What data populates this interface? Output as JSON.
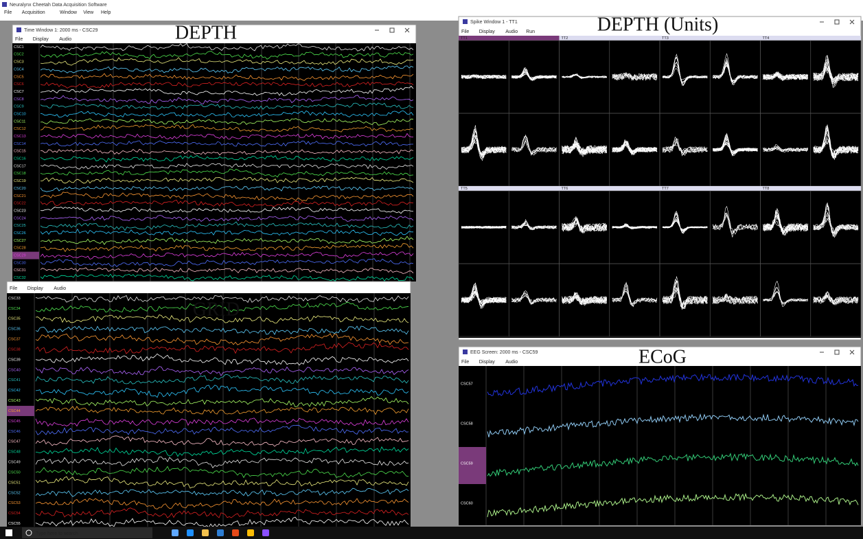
{
  "app": {
    "title": "Neuralynx Cheetah Data Acquisition Software",
    "menu": [
      "File",
      "Acquisition",
      "Window",
      "View",
      "Help"
    ]
  },
  "windows": {
    "depth": {
      "title": "Time Window 1: 2000 ms - CSC29",
      "menu": [
        "File",
        "Display",
        "Audio"
      ],
      "label": "DEPTH",
      "channels": [
        "CSC1",
        "CSC2",
        "CSC3",
        "CSC4",
        "CSC5",
        "CSC6",
        "CSC7",
        "CSC8",
        "CSC9",
        "CSC10",
        "CSC11",
        "CSC12",
        "CSC13",
        "CSC14",
        "CSC15",
        "CSC16",
        "CSC17",
        "CSC18",
        "CSC19",
        "CSC20",
        "CSC21",
        "CSC22",
        "CSC23",
        "CSC24",
        "CSC25",
        "CSC26",
        "CSC27",
        "CSC28",
        "CSC29",
        "CSC30",
        "CSC31",
        "CSC32"
      ],
      "selected": "CSC29"
    },
    "grid": {
      "menu": [
        "File",
        "Display",
        "Audio"
      ],
      "label": "GRID",
      "channels": [
        "CSC33",
        "CSC34",
        "CSC35",
        "CSC36",
        "CSC37",
        "CSC38",
        "CSC39",
        "CSC40",
        "CSC41",
        "CSC42",
        "CSC43",
        "CSC44",
        "CSC45",
        "CSC46",
        "CSC47",
        "CSC48",
        "CSC49",
        "CSC50",
        "CSC51",
        "CSC52",
        "CSC53",
        "CSC54",
        "CSC55"
      ],
      "selected": "CSC44"
    },
    "spike": {
      "title": "Spike Window 1 - TT1",
      "menu": [
        "File",
        "Display",
        "Audio",
        "Run"
      ],
      "label": "DEPTH (Units)",
      "tetrodes": [
        "TT1",
        "TT2",
        "TT3",
        "TT4",
        "TT5",
        "TT6",
        "TT7",
        "TT8"
      ]
    },
    "ecog": {
      "title": "EEG Screen: 2000 ms - CSC59",
      "menu": [
        "File",
        "Display",
        "Audio"
      ],
      "label": "ECoG",
      "channels": [
        "CSC57",
        "CSC58",
        "CSC59",
        "CSC60"
      ],
      "selected": "CSC59"
    }
  },
  "taskbar": {
    "search": "Type here to search"
  }
}
